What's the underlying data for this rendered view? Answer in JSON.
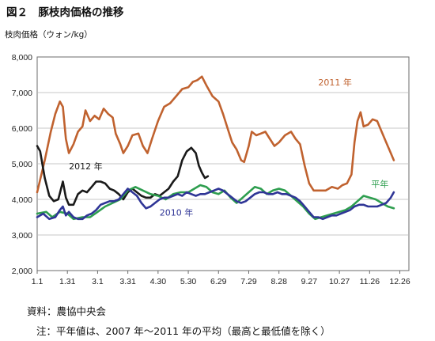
{
  "figure": {
    "title": "図２　豚枝肉価格の推移",
    "y_unit_label": "枝肉価格（ウォン/kg）",
    "source": "資料：農協中央会",
    "note": "注：平年値は、2007 年～2011 年の平均（最高と最低値を除く）"
  },
  "chart_data": {
    "type": "line",
    "title": "",
    "xlabel": "",
    "ylabel": "枝肉価格（ウォン/kg）",
    "x_domain": [
      0,
      12.3
    ],
    "ylim": [
      2000,
      8000
    ],
    "yticks": [
      2000,
      3000,
      4000,
      5000,
      6000,
      7000,
      8000
    ],
    "ytick_labels": [
      "2,000",
      "3,000",
      "4,000",
      "5,000",
      "6,000",
      "7,000",
      "8,000"
    ],
    "xtick_labels": [
      {
        "x": 0.0,
        "label": "1.1"
      },
      {
        "x": 1.0,
        "label": "1.31"
      },
      {
        "x": 2.0,
        "label": "3.1"
      },
      {
        "x": 3.0,
        "label": "3.31"
      },
      {
        "x": 4.0,
        "label": "4.30"
      },
      {
        "x": 5.0,
        "label": "5.30"
      },
      {
        "x": 6.0,
        "label": "6.29"
      },
      {
        "x": 7.0,
        "label": "7.29"
      },
      {
        "x": 8.0,
        "label": "8.28"
      },
      {
        "x": 9.0,
        "label": "9.27"
      },
      {
        "x": 10.0,
        "label": "10.27"
      },
      {
        "x": 11.0,
        "label": "11.26"
      },
      {
        "x": 12.0,
        "label": "12.26"
      }
    ],
    "grid": "horizontal",
    "series": [
      {
        "name": "2011 年",
        "color": "#c0622f",
        "label_at": {
          "x": 9.3,
          "y": 7200
        },
        "points": [
          [
            0.0,
            4200
          ],
          [
            0.25,
            5100
          ],
          [
            0.45,
            5900
          ],
          [
            0.6,
            6400
          ],
          [
            0.75,
            6750
          ],
          [
            0.85,
            6600
          ],
          [
            0.95,
            5700
          ],
          [
            1.05,
            5300
          ],
          [
            1.2,
            5550
          ],
          [
            1.35,
            5900
          ],
          [
            1.5,
            6050
          ],
          [
            1.6,
            6500
          ],
          [
            1.75,
            6200
          ],
          [
            1.9,
            6350
          ],
          [
            2.05,
            6250
          ],
          [
            2.2,
            6550
          ],
          [
            2.35,
            6400
          ],
          [
            2.5,
            6300
          ],
          [
            2.6,
            5850
          ],
          [
            2.75,
            5550
          ],
          [
            2.85,
            5300
          ],
          [
            3.0,
            5500
          ],
          [
            3.15,
            5800
          ],
          [
            3.35,
            5850
          ],
          [
            3.5,
            5500
          ],
          [
            3.65,
            5300
          ],
          [
            3.8,
            5700
          ],
          [
            4.0,
            6200
          ],
          [
            4.2,
            6600
          ],
          [
            4.4,
            6700
          ],
          [
            4.6,
            6900
          ],
          [
            4.8,
            7100
          ],
          [
            5.0,
            7150
          ],
          [
            5.15,
            7300
          ],
          [
            5.3,
            7350
          ],
          [
            5.45,
            7450
          ],
          [
            5.6,
            7200
          ],
          [
            5.8,
            6900
          ],
          [
            6.0,
            6750
          ],
          [
            6.15,
            6400
          ],
          [
            6.3,
            6000
          ],
          [
            6.45,
            5600
          ],
          [
            6.6,
            5400
          ],
          [
            6.75,
            5100
          ],
          [
            6.85,
            5050
          ],
          [
            7.0,
            5500
          ],
          [
            7.1,
            5900
          ],
          [
            7.25,
            5800
          ],
          [
            7.4,
            5850
          ],
          [
            7.55,
            5900
          ],
          [
            7.7,
            5700
          ],
          [
            7.85,
            5500
          ],
          [
            8.0,
            5600
          ],
          [
            8.2,
            5800
          ],
          [
            8.4,
            5900
          ],
          [
            8.55,
            5700
          ],
          [
            8.7,
            5550
          ],
          [
            8.85,
            4950
          ],
          [
            9.0,
            4450
          ],
          [
            9.15,
            4250
          ],
          [
            9.35,
            4250
          ],
          [
            9.55,
            4250
          ],
          [
            9.75,
            4350
          ],
          [
            9.95,
            4300
          ],
          [
            10.1,
            4400
          ],
          [
            10.25,
            4450
          ],
          [
            10.4,
            4700
          ],
          [
            10.5,
            5600
          ],
          [
            10.6,
            6200
          ],
          [
            10.7,
            6450
          ],
          [
            10.8,
            6050
          ],
          [
            10.95,
            6100
          ],
          [
            11.1,
            6250
          ],
          [
            11.25,
            6200
          ],
          [
            11.4,
            5900
          ],
          [
            11.55,
            5600
          ],
          [
            11.7,
            5300
          ],
          [
            11.8,
            5100
          ]
        ]
      },
      {
        "name": "2012 年",
        "color": "#1a1a1a",
        "label_at": {
          "x": 1.05,
          "y": 4850
        },
        "points": [
          [
            0.0,
            5500
          ],
          [
            0.1,
            5350
          ],
          [
            0.25,
            4600
          ],
          [
            0.4,
            4100
          ],
          [
            0.55,
            3950
          ],
          [
            0.7,
            4000
          ],
          [
            0.85,
            4500
          ],
          [
            0.95,
            4050
          ],
          [
            1.05,
            3850
          ],
          [
            1.2,
            3850
          ],
          [
            1.35,
            4150
          ],
          [
            1.5,
            4250
          ],
          [
            1.65,
            4200
          ],
          [
            1.8,
            4350
          ],
          [
            1.95,
            4500
          ],
          [
            2.1,
            4500
          ],
          [
            2.25,
            4450
          ],
          [
            2.4,
            4300
          ],
          [
            2.55,
            4250
          ],
          [
            2.7,
            4150
          ],
          [
            2.85,
            4000
          ],
          [
            3.0,
            4200
          ],
          [
            3.15,
            4300
          ],
          [
            3.3,
            4200
          ],
          [
            3.45,
            4100
          ],
          [
            3.6,
            4050
          ],
          [
            3.75,
            4050
          ],
          [
            3.9,
            4150
          ],
          [
            4.05,
            4100
          ],
          [
            4.2,
            4200
          ],
          [
            4.35,
            4300
          ],
          [
            4.5,
            4500
          ],
          [
            4.65,
            4650
          ],
          [
            4.8,
            5100
          ],
          [
            4.95,
            5350
          ],
          [
            5.1,
            5450
          ],
          [
            5.25,
            5300
          ],
          [
            5.35,
            4950
          ],
          [
            5.45,
            4750
          ],
          [
            5.55,
            4600
          ],
          [
            5.65,
            4650
          ]
        ]
      },
      {
        "name": "平年",
        "color": "#2e9e4f",
        "label_at": {
          "x": 11.05,
          "y": 4350
        },
        "points": [
          [
            0.0,
            3600
          ],
          [
            0.3,
            3650
          ],
          [
            0.5,
            3500
          ],
          [
            0.75,
            3650
          ],
          [
            1.0,
            3600
          ],
          [
            1.2,
            3450
          ],
          [
            1.5,
            3500
          ],
          [
            1.75,
            3500
          ],
          [
            2.0,
            3650
          ],
          [
            2.25,
            3800
          ],
          [
            2.5,
            3900
          ],
          [
            2.75,
            4000
          ],
          [
            3.0,
            4250
          ],
          [
            3.25,
            4350
          ],
          [
            3.5,
            4250
          ],
          [
            3.75,
            4150
          ],
          [
            4.0,
            4100
          ],
          [
            4.25,
            4000
          ],
          [
            4.5,
            4150
          ],
          [
            4.75,
            4200
          ],
          [
            5.0,
            4200
          ],
          [
            5.2,
            4300
          ],
          [
            5.4,
            4400
          ],
          [
            5.6,
            4350
          ],
          [
            5.8,
            4200
          ],
          [
            6.0,
            4150
          ],
          [
            6.2,
            4250
          ],
          [
            6.4,
            4050
          ],
          [
            6.6,
            3900
          ],
          [
            6.8,
            4050
          ],
          [
            7.0,
            4200
          ],
          [
            7.2,
            4350
          ],
          [
            7.4,
            4300
          ],
          [
            7.6,
            4150
          ],
          [
            7.8,
            4250
          ],
          [
            8.0,
            4300
          ],
          [
            8.2,
            4250
          ],
          [
            8.4,
            4100
          ],
          [
            8.6,
            3950
          ],
          [
            8.8,
            3800
          ],
          [
            9.0,
            3600
          ],
          [
            9.2,
            3450
          ],
          [
            9.4,
            3500
          ],
          [
            9.6,
            3550
          ],
          [
            9.8,
            3600
          ],
          [
            10.0,
            3650
          ],
          [
            10.2,
            3700
          ],
          [
            10.4,
            3800
          ],
          [
            10.6,
            3950
          ],
          [
            10.8,
            4100
          ],
          [
            11.0,
            4050
          ],
          [
            11.2,
            4000
          ],
          [
            11.4,
            3900
          ],
          [
            11.6,
            3800
          ],
          [
            11.8,
            3750
          ]
        ]
      },
      {
        "name": "2010 年",
        "color": "#2f3596",
        "label_at": {
          "x": 4.05,
          "y": 3550
        },
        "points": [
          [
            0.0,
            3500
          ],
          [
            0.2,
            3600
          ],
          [
            0.4,
            3450
          ],
          [
            0.6,
            3500
          ],
          [
            0.75,
            3700
          ],
          [
            0.85,
            3800
          ],
          [
            0.95,
            3550
          ],
          [
            1.05,
            3650
          ],
          [
            1.2,
            3500
          ],
          [
            1.35,
            3450
          ],
          [
            1.5,
            3450
          ],
          [
            1.65,
            3550
          ],
          [
            1.8,
            3600
          ],
          [
            1.95,
            3700
          ],
          [
            2.1,
            3850
          ],
          [
            2.25,
            3900
          ],
          [
            2.4,
            3950
          ],
          [
            2.55,
            3950
          ],
          [
            2.7,
            4000
          ],
          [
            2.85,
            4150
          ],
          [
            3.0,
            4300
          ],
          [
            3.15,
            4200
          ],
          [
            3.3,
            4100
          ],
          [
            3.45,
            3900
          ],
          [
            3.6,
            3750
          ],
          [
            3.75,
            3800
          ],
          [
            3.9,
            3900
          ],
          [
            4.05,
            4000
          ],
          [
            4.2,
            4050
          ],
          [
            4.35,
            4050
          ],
          [
            4.5,
            4100
          ],
          [
            4.65,
            4150
          ],
          [
            4.8,
            4100
          ],
          [
            4.95,
            4200
          ],
          [
            5.1,
            4150
          ],
          [
            5.25,
            4100
          ],
          [
            5.4,
            4150
          ],
          [
            5.55,
            4150
          ],
          [
            5.7,
            4200
          ],
          [
            5.85,
            4250
          ],
          [
            6.0,
            4300
          ],
          [
            6.15,
            4250
          ],
          [
            6.3,
            4150
          ],
          [
            6.45,
            4050
          ],
          [
            6.6,
            3950
          ],
          [
            6.75,
            3900
          ],
          [
            6.9,
            3950
          ],
          [
            7.05,
            4050
          ],
          [
            7.2,
            4150
          ],
          [
            7.35,
            4200
          ],
          [
            7.5,
            4200
          ],
          [
            7.65,
            4150
          ],
          [
            7.8,
            4150
          ],
          [
            7.95,
            4200
          ],
          [
            8.1,
            4150
          ],
          [
            8.25,
            4150
          ],
          [
            8.4,
            4100
          ],
          [
            8.55,
            4050
          ],
          [
            8.7,
            3950
          ],
          [
            8.85,
            3800
          ],
          [
            9.0,
            3650
          ],
          [
            9.15,
            3500
          ],
          [
            9.3,
            3500
          ],
          [
            9.45,
            3450
          ],
          [
            9.6,
            3500
          ],
          [
            9.75,
            3550
          ],
          [
            9.9,
            3550
          ],
          [
            10.05,
            3600
          ],
          [
            10.2,
            3650
          ],
          [
            10.35,
            3700
          ],
          [
            10.5,
            3800
          ],
          [
            10.65,
            3850
          ],
          [
            10.8,
            3850
          ],
          [
            10.95,
            3800
          ],
          [
            11.1,
            3800
          ],
          [
            11.25,
            3800
          ],
          [
            11.4,
            3850
          ],
          [
            11.55,
            3900
          ],
          [
            11.7,
            4050
          ],
          [
            11.8,
            4200
          ]
        ]
      }
    ]
  }
}
